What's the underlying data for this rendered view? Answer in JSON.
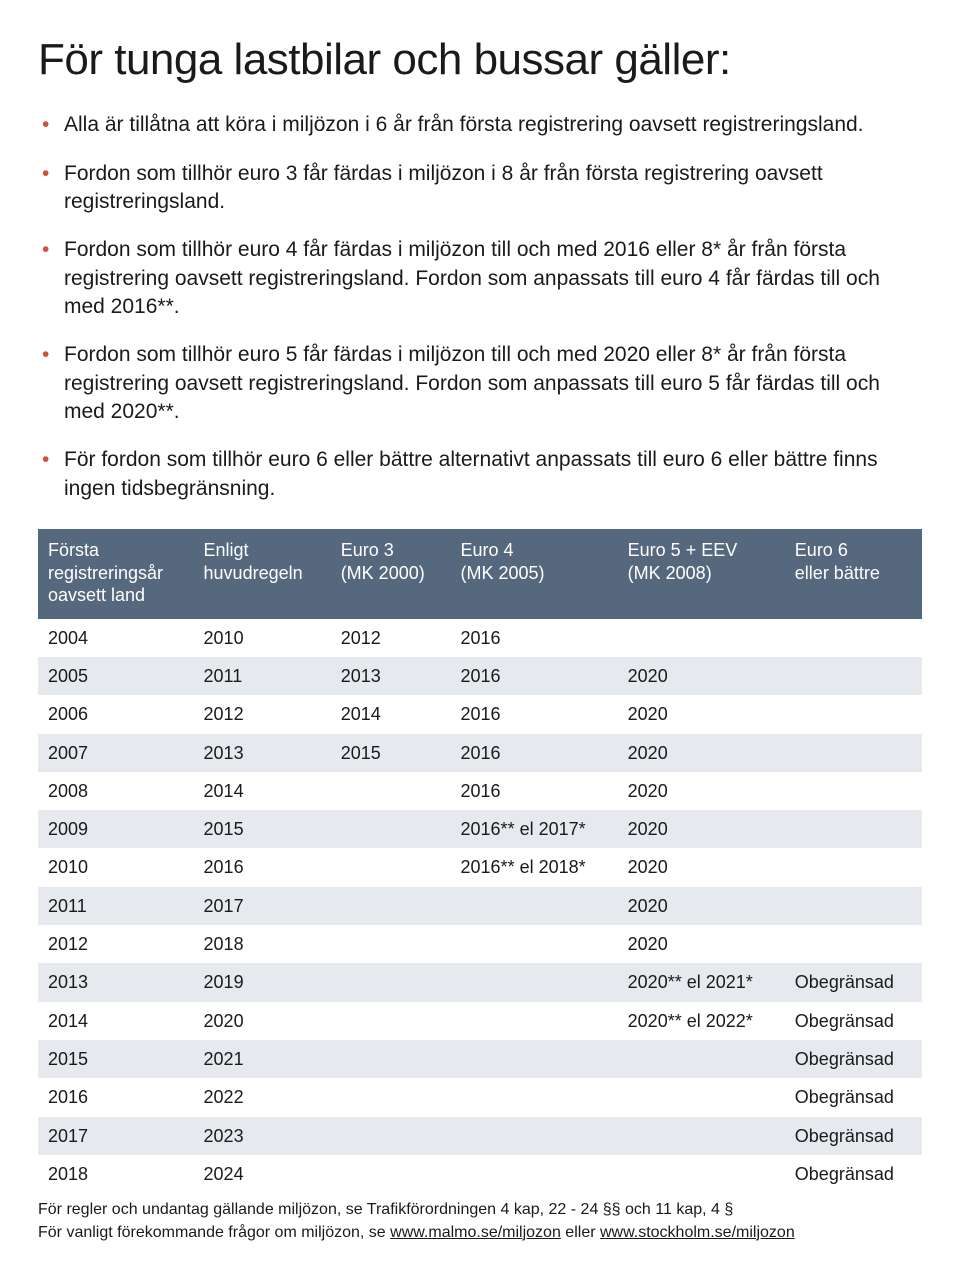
{
  "title": "För tunga lastbilar och bussar gäller:",
  "bullet_color": "#d14f3c",
  "bullets": [
    "Alla är tillåtna att köra i miljözon i 6 år från första registrering oavsett registreringsland.",
    "Fordon som tillhör euro 3 får färdas i miljözon i 8 år från första registrering oavsett registreringsland.",
    "Fordon som tillhör euro 4 får färdas i miljözon till och med 2016 eller 8* år från första registrering oavsett registreringsland. Fordon som anpassats till euro 4 får färdas till och med 2016**.",
    "Fordon som tillhör euro 5 får färdas i miljözon till och med 2020 eller 8* år från första registrering oavsett registreringsland. Fordon som anpassats till euro 5 får färdas till och med 2020**.",
    "För fordon som tillhör euro 6 eller bättre alternativt anpassats till euro 6 eller bättre finns ingen tidsbegränsning."
  ],
  "table": {
    "header_bg": "#55687e",
    "header_color": "#ffffff",
    "row_alt_bg": "#e6eaee",
    "row_bg": "#ffffff",
    "columns": [
      "Första registreringsår oavsett land",
      "Enligt huvudregeln",
      "Euro 3 (MK 2000)",
      "Euro 4 (MK 2005)",
      "Euro 5 + EEV (MK 2008)",
      "Euro 6 eller bättre"
    ],
    "column_breaks": [
      "Första\nregistreringsår\noavsett land",
      "Enligt\nhuvudregeln",
      "Euro 3\n(MK 2000)",
      "Euro 4\n(MK 2005)",
      "Euro 5 + EEV\n(MK 2008)",
      "Euro 6\neller bättre"
    ],
    "rows": [
      [
        "2004",
        "2010",
        "2012",
        "2016",
        "",
        ""
      ],
      [
        "2005",
        "2011",
        "2013",
        "2016",
        "2020",
        ""
      ],
      [
        "2006",
        "2012",
        "2014",
        "2016",
        "2020",
        ""
      ],
      [
        "2007",
        "2013",
        "2015",
        "2016",
        "2020",
        ""
      ],
      [
        "2008",
        "2014",
        "",
        "2016",
        "2020",
        ""
      ],
      [
        "2009",
        "2015",
        "",
        "2016** el 2017*",
        "2020",
        ""
      ],
      [
        "2010",
        "2016",
        "",
        "2016** el 2018*",
        "2020",
        ""
      ],
      [
        "2011",
        "2017",
        "",
        "",
        "2020",
        ""
      ],
      [
        "2012",
        "2018",
        "",
        "",
        "2020",
        ""
      ],
      [
        "2013",
        "2019",
        "",
        "",
        "2020** el 2021*",
        "Obegränsad"
      ],
      [
        "2014",
        "2020",
        "",
        "",
        "2020** el 2022*",
        "Obegränsad"
      ],
      [
        "2015",
        "2021",
        "",
        "",
        "",
        "Obegränsad"
      ],
      [
        "2016",
        "2022",
        "",
        "",
        "",
        "Obegränsad"
      ],
      [
        "2017",
        "2023",
        "",
        "",
        "",
        "Obegränsad"
      ],
      [
        "2018",
        "2024",
        "",
        "",
        "",
        "Obegränsad"
      ]
    ]
  },
  "footnotes": {
    "line1_pre": "För regler och undantag gällande miljözon, se Trafikförordningen 4 kap, 22 - 24 §§ och 11 kap, 4 §",
    "line2_pre": "För vanligt förekommande frågor om miljözon, se ",
    "link1": "www.malmo.se/miljozon",
    "mid": " eller ",
    "link2": "www.stockholm.se/miljozon"
  }
}
